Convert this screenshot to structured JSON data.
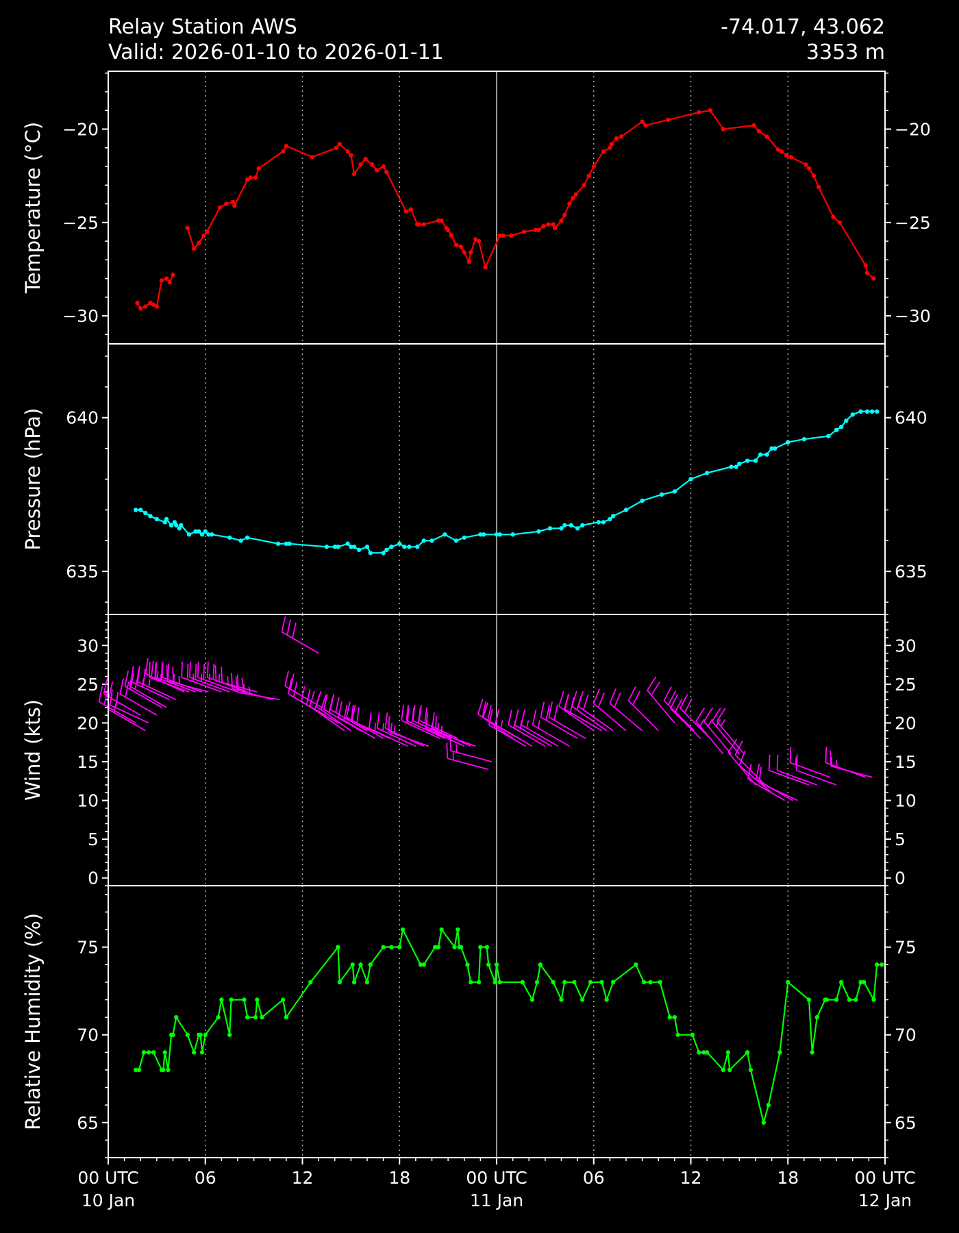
{
  "header": {
    "title": "Relay Station AWS",
    "valid": "Valid: 2026-01-10 to 2026-01-11",
    "coords": "-74.017, 43.062",
    "elevation": "3353 m"
  },
  "chart_data": [
    {
      "type": "line",
      "ylabel": "Temperature ($^\\circ$C)",
      "ylabel_display": "Temperature (°C)",
      "ylim": [
        -31.5,
        -16.9
      ],
      "yticks": [
        -30,
        -25,
        -20
      ],
      "color": "#ff0000",
      "x_hours": [
        1.8,
        2.0,
        2.3,
        2.6,
        2.8,
        3.0,
        3.3,
        3.6,
        3.8,
        4.0,
        4.2,
        4.9,
        5.3,
        5.6,
        5.9,
        6.1,
        6.9,
        7.3,
        7.7,
        7.8,
        8.6,
        8.8,
        9.1,
        9.3,
        10.8,
        11.0,
        12.6,
        14.1,
        14.3,
        14.8,
        15.0,
        15.2,
        15.6,
        15.9,
        16.3,
        16.6,
        17.0,
        17.2,
        18.4,
        18.7,
        19.1,
        19.2,
        19.5,
        20.4,
        20.6,
        20.9,
        21.0,
        21.2,
        21.5,
        21.8,
        22.0,
        22.3,
        22.4,
        22.7,
        22.9,
        23.3,
        24.2,
        24.4,
        24.9,
        25.7,
        26.4,
        26.6,
        26.9,
        27.2,
        27.5,
        27.6,
        28.0,
        28.2,
        28.5,
        28.7,
        28.9,
        29.4,
        29.7,
        30.0,
        30.6,
        31.0,
        31.1,
        31.4,
        31.7,
        33.0,
        33.2,
        34.6,
        36.5,
        37.2,
        38.0,
        39.9,
        40.2,
        40.7,
        41.4,
        41.6,
        41.9,
        42.2,
        43.1,
        43.3,
        43.6,
        43.9,
        44.8,
        45.2,
        46.8,
        46.9,
        47.3
      ],
      "values": [
        -29.3,
        -29.6,
        -29.5,
        -29.3,
        -29.4,
        -29.5,
        -28.1,
        -28.0,
        -28.2,
        -27.8,
        null,
        -25.3,
        -26.4,
        -26.1,
        -25.7,
        -25.5,
        -24.2,
        -24.0,
        -23.9,
        -24.1,
        -22.7,
        -22.6,
        -22.6,
        -22.1,
        -21.2,
        -20.9,
        -21.5,
        -21.0,
        -20.8,
        -21.2,
        -21.4,
        -22.4,
        -21.9,
        -21.6,
        -21.9,
        -22.2,
        -22.0,
        -22.3,
        -24.4,
        -24.3,
        -25.1,
        -25.1,
        -25.1,
        -24.9,
        -24.9,
        -25.3,
        -25.4,
        -25.7,
        -26.2,
        -26.3,
        -26.6,
        -27.1,
        -26.6,
        -25.9,
        -26.0,
        -27.4,
        -25.7,
        -25.7,
        -25.7,
        -25.5,
        -25.4,
        -25.4,
        -25.2,
        -25.1,
        -25.1,
        -25.3,
        -24.9,
        -24.6,
        -24.0,
        -23.7,
        -23.5,
        -23.0,
        -22.5,
        -22.0,
        -21.2,
        -21.0,
        -20.8,
        -20.5,
        -20.4,
        -19.6,
        -19.8,
        -19.5,
        -19.1,
        -19.0,
        -20.0,
        -19.8,
        -20.1,
        -20.4,
        -21.1,
        -21.2,
        -21.4,
        -21.5,
        -21.9,
        -22.1,
        -22.5,
        -23.1,
        -24.7,
        -25.0,
        -27.3,
        -27.7,
        -28.0
      ]
    },
    {
      "type": "line",
      "ylabel": "Pressure (hPa)",
      "ylim": [
        633.6,
        642.4
      ],
      "yticks": [
        635,
        640
      ],
      "color": "#00ffff",
      "x_hours": [
        1.7,
        2.0,
        2.3,
        2.6,
        3.0,
        3.5,
        3.6,
        3.9,
        4.1,
        4.2,
        4.4,
        4.5,
        5.0,
        5.4,
        5.6,
        5.8,
        6.0,
        6.2,
        6.4,
        7.5,
        8.2,
        8.6,
        10.5,
        11.0,
        11.2,
        13.5,
        14.0,
        14.2,
        14.8,
        15.0,
        15.2,
        15.5,
        16.0,
        16.2,
        17.0,
        17.2,
        17.5,
        18.0,
        18.3,
        18.6,
        19.1,
        19.5,
        20.0,
        20.8,
        21.5,
        22.0,
        23.0,
        23.2,
        24.0,
        24.2,
        25.0,
        26.6,
        27.3,
        28.0,
        28.2,
        28.6,
        29.0,
        29.3,
        30.3,
        30.6,
        31.0,
        31.2,
        32.0,
        33.0,
        34.2,
        35.0,
        36.0,
        37.0,
        38.5,
        38.8,
        39.0,
        39.5,
        40.0,
        40.3,
        40.7,
        41.0,
        41.2,
        42.0,
        43.0,
        44.5,
        45.0,
        45.3,
        45.6,
        46.0,
        46.5,
        46.9,
        47.2,
        47.5
      ],
      "values": [
        637.0,
        637.0,
        636.9,
        636.8,
        636.7,
        636.6,
        636.7,
        636.5,
        636.6,
        636.5,
        636.4,
        636.5,
        636.2,
        636.3,
        636.3,
        636.2,
        636.3,
        636.2,
        636.2,
        636.1,
        636.0,
        636.1,
        635.9,
        635.9,
        635.9,
        635.8,
        635.8,
        635.8,
        635.9,
        635.8,
        635.8,
        635.7,
        635.8,
        635.6,
        635.6,
        635.7,
        635.8,
        635.9,
        635.8,
        635.8,
        635.8,
        636.0,
        636.0,
        636.2,
        636.0,
        636.1,
        636.2,
        636.2,
        636.2,
        636.2,
        636.2,
        636.3,
        636.4,
        636.4,
        636.5,
        636.5,
        636.4,
        636.5,
        636.6,
        636.6,
        636.7,
        636.8,
        637.0,
        637.3,
        637.5,
        637.6,
        638.0,
        638.2,
        638.4,
        638.4,
        638.5,
        638.6,
        638.6,
        638.8,
        638.8,
        639.0,
        639.0,
        639.2,
        639.3,
        639.4,
        639.6,
        639.7,
        639.9,
        640.1,
        640.2,
        640.2,
        640.2,
        640.2
      ],
      "x_hours_note": ""
    },
    {
      "type": "barbs",
      "ylabel": "Wind (kts)",
      "ylim": [
        -1,
        34
      ],
      "yticks": [
        0,
        5,
        10,
        15,
        20,
        25,
        30
      ],
      "color": "#ff00ff",
      "barbs": [
        {
          "x": 1.7,
          "speed": 20,
          "dir": 300
        },
        {
          "x": 2.0,
          "speed": 21,
          "dir": 300
        },
        {
          "x": 2.3,
          "speed": 19,
          "dir": 300
        },
        {
          "x": 2.5,
          "speed": 20,
          "dir": 295
        },
        {
          "x": 3.0,
          "speed": 21,
          "dir": 300
        },
        {
          "x": 3.3,
          "speed": 22,
          "dir": 300
        },
        {
          "x": 3.6,
          "speed": 22,
          "dir": 300
        },
        {
          "x": 3.8,
          "speed": 23,
          "dir": 295
        },
        {
          "x": 4.2,
          "speed": 23,
          "dir": 295
        },
        {
          "x": 4.7,
          "speed": 24,
          "dir": 295
        },
        {
          "x": 5.0,
          "speed": 24,
          "dir": 290
        },
        {
          "x": 5.4,
          "speed": 24,
          "dir": 290
        },
        {
          "x": 5.8,
          "speed": 24,
          "dir": 290
        },
        {
          "x": 6.2,
          "speed": 24,
          "dir": 285
        },
        {
          "x": 7.0,
          "speed": 24,
          "dir": 290
        },
        {
          "x": 7.5,
          "speed": 24,
          "dir": 290
        },
        {
          "x": 8.0,
          "speed": 24,
          "dir": 290
        },
        {
          "x": 8.6,
          "speed": 24,
          "dir": 290
        },
        {
          "x": 9.2,
          "speed": 24,
          "dir": 285
        },
        {
          "x": 10.2,
          "speed": 23,
          "dir": 285
        },
        {
          "x": 10.6,
          "speed": 23,
          "dir": 280
        },
        {
          "x": 13.0,
          "speed": 29,
          "dir": 300
        },
        {
          "x": 13.2,
          "speed": 22,
          "dir": 300
        },
        {
          "x": 13.4,
          "speed": 21,
          "dir": 300
        },
        {
          "x": 14.2,
          "speed": 20,
          "dir": 300
        },
        {
          "x": 14.6,
          "speed": 19,
          "dir": 305
        },
        {
          "x": 15.0,
          "speed": 19,
          "dir": 305
        },
        {
          "x": 15.6,
          "speed": 19,
          "dir": 300
        },
        {
          "x": 16.0,
          "speed": 19,
          "dir": 300
        },
        {
          "x": 16.5,
          "speed": 18,
          "dir": 300
        },
        {
          "x": 17.0,
          "speed": 18,
          "dir": 300
        },
        {
          "x": 17.4,
          "speed": 18,
          "dir": 295
        },
        {
          "x": 18.5,
          "speed": 17,
          "dir": 295
        },
        {
          "x": 19.0,
          "speed": 17,
          "dir": 295
        },
        {
          "x": 19.5,
          "speed": 17,
          "dir": 295
        },
        {
          "x": 19.8,
          "speed": 17,
          "dir": 290
        },
        {
          "x": 20.5,
          "speed": 18,
          "dir": 295
        },
        {
          "x": 20.8,
          "speed": 18,
          "dir": 295
        },
        {
          "x": 21.2,
          "speed": 18,
          "dir": 295
        },
        {
          "x": 21.6,
          "speed": 18,
          "dir": 295
        },
        {
          "x": 22.0,
          "speed": 17,
          "dir": 295
        },
        {
          "x": 22.4,
          "speed": 17,
          "dir": 295
        },
        {
          "x": 22.7,
          "speed": 17,
          "dir": 290
        },
        {
          "x": 23.5,
          "speed": 14,
          "dir": 285
        },
        {
          "x": 23.7,
          "speed": 15,
          "dir": 285
        },
        {
          "x": 25.0,
          "speed": 18,
          "dir": 305
        },
        {
          "x": 25.4,
          "speed": 18,
          "dir": 300
        },
        {
          "x": 25.8,
          "speed": 17,
          "dir": 300
        },
        {
          "x": 26.2,
          "speed": 17,
          "dir": 300
        },
        {
          "x": 27.0,
          "speed": 17,
          "dir": 300
        },
        {
          "x": 27.4,
          "speed": 17,
          "dir": 300
        },
        {
          "x": 27.8,
          "speed": 17,
          "dir": 300
        },
        {
          "x": 28.5,
          "speed": 17,
          "dir": 300
        },
        {
          "x": 29.0,
          "speed": 18,
          "dir": 300
        },
        {
          "x": 29.5,
          "speed": 18,
          "dir": 300
        },
        {
          "x": 30.0,
          "speed": 19,
          "dir": 305
        },
        {
          "x": 30.5,
          "speed": 19,
          "dir": 300
        },
        {
          "x": 30.8,
          "speed": 19,
          "dir": 305
        },
        {
          "x": 31.2,
          "speed": 19,
          "dir": 305
        },
        {
          "x": 32.0,
          "speed": 19,
          "dir": 310
        },
        {
          "x": 33.0,
          "speed": 19,
          "dir": 310
        },
        {
          "x": 34.0,
          "speed": 19,
          "dir": 315
        },
        {
          "x": 35.0,
          "speed": 20,
          "dir": 320
        },
        {
          "x": 36.2,
          "speed": 19,
          "dir": 315
        },
        {
          "x": 36.6,
          "speed": 18,
          "dir": 315
        },
        {
          "x": 37.2,
          "speed": 18,
          "dir": 315
        },
        {
          "x": 38.0,
          "speed": 16,
          "dir": 320
        },
        {
          "x": 38.5,
          "speed": 16,
          "dir": 320
        },
        {
          "x": 39.0,
          "speed": 16,
          "dir": 320
        },
        {
          "x": 39.3,
          "speed": 16,
          "dir": 320
        },
        {
          "x": 40.0,
          "speed": 12,
          "dir": 320
        },
        {
          "x": 40.6,
          "speed": 12,
          "dir": 315
        },
        {
          "x": 41.0,
          "speed": 11,
          "dir": 310
        },
        {
          "x": 41.8,
          "speed": 10,
          "dir": 300
        },
        {
          "x": 42.3,
          "speed": 10,
          "dir": 300
        },
        {
          "x": 42.6,
          "speed": 10,
          "dir": 295
        },
        {
          "x": 43.3,
          "speed": 12,
          "dir": 290
        },
        {
          "x": 43.8,
          "speed": 12,
          "dir": 290
        },
        {
          "x": 44.6,
          "speed": 13,
          "dir": 290
        },
        {
          "x": 45.0,
          "speed": 12,
          "dir": 290
        },
        {
          "x": 46.8,
          "speed": 13,
          "dir": 290
        },
        {
          "x": 47.2,
          "speed": 13,
          "dir": 285
        }
      ]
    },
    {
      "type": "line",
      "ylabel": "Relative Humidity (%)",
      "ylim": [
        63,
        78.5
      ],
      "yticks": [
        65,
        70,
        75
      ],
      "color": "#00ff00",
      "x_hours": [
        1.7,
        1.9,
        2.2,
        2.5,
        2.8,
        3.3,
        3.4,
        3.5,
        3.7,
        3.9,
        4.0,
        4.2,
        4.9,
        5.3,
        5.6,
        5.7,
        5.8,
        6.0,
        6.8,
        7.0,
        7.5,
        7.6,
        8.4,
        8.6,
        9.1,
        9.2,
        9.5,
        10.8,
        11.0,
        12.5,
        14.2,
        14.3,
        15.1,
        15.2,
        15.6,
        16.0,
        16.2,
        17.0,
        17.5,
        18.0,
        18.2,
        19.3,
        19.5,
        20.2,
        20.4,
        20.6,
        21.4,
        21.6,
        21.7,
        21.8,
        22.2,
        22.4,
        22.9,
        23.0,
        23.4,
        23.5,
        23.9,
        24.0,
        24.2,
        25.6,
        26.2,
        26.5,
        26.7,
        27.5,
        28.0,
        28.2,
        28.8,
        29.3,
        29.8,
        30.5,
        30.8,
        31.2,
        32.6,
        33.1,
        33.5,
        34.1,
        34.7,
        35.0,
        35.2,
        36.1,
        36.5,
        36.8,
        37.0,
        38.0,
        38.3,
        38.4,
        39.5,
        39.7,
        40.5,
        40.8,
        41.5,
        42.0,
        43.3,
        43.5,
        43.8,
        44.3,
        44.4,
        45.0,
        45.3,
        45.8,
        46.2,
        46.5,
        46.7,
        47.3,
        47.5,
        47.8
      ],
      "values": [
        68,
        68,
        69,
        69,
        69,
        68,
        68,
        69,
        68,
        70,
        70,
        71,
        70,
        69,
        70,
        70,
        69,
        70,
        71,
        72,
        70,
        72,
        72,
        71,
        71,
        72,
        71,
        72,
        71,
        73,
        75,
        73,
        74,
        73,
        74,
        73,
        74,
        75,
        75,
        75,
        76,
        74,
        74,
        75,
        75,
        76,
        75,
        76,
        75,
        75,
        74,
        73,
        73,
        75,
        75,
        74,
        73,
        74,
        73,
        73,
        72,
        73,
        74,
        73,
        72,
        73,
        73,
        72,
        73,
        73,
        72,
        73,
        74,
        73,
        73,
        73,
        71,
        71,
        70,
        70,
        69,
        69,
        69,
        68,
        69,
        68,
        69,
        68,
        65,
        66,
        69,
        73,
        72,
        69,
        71,
        72,
        72,
        72,
        73,
        72,
        72,
        73,
        73,
        72,
        74,
        74
      ],
      "x_hours_note": ""
    }
  ],
  "x_axis": {
    "range_hours": [
      0,
      48
    ],
    "ticks": [
      {
        "h": 0,
        "line1": "00 UTC",
        "line2": "10 Jan"
      },
      {
        "h": 6,
        "line1": "06",
        "line2": ""
      },
      {
        "h": 12,
        "line1": "12",
        "line2": ""
      },
      {
        "h": 18,
        "line1": "18",
        "line2": ""
      },
      {
        "h": 24,
        "line1": "00 UTC",
        "line2": "11 Jan"
      },
      {
        "h": 30,
        "line1": "06",
        "line2": ""
      },
      {
        "h": 36,
        "line1": "12",
        "line2": ""
      },
      {
        "h": 42,
        "line1": "18",
        "line2": ""
      },
      {
        "h": 48,
        "line1": "00 UTC",
        "line2": "12 Jan"
      }
    ]
  }
}
